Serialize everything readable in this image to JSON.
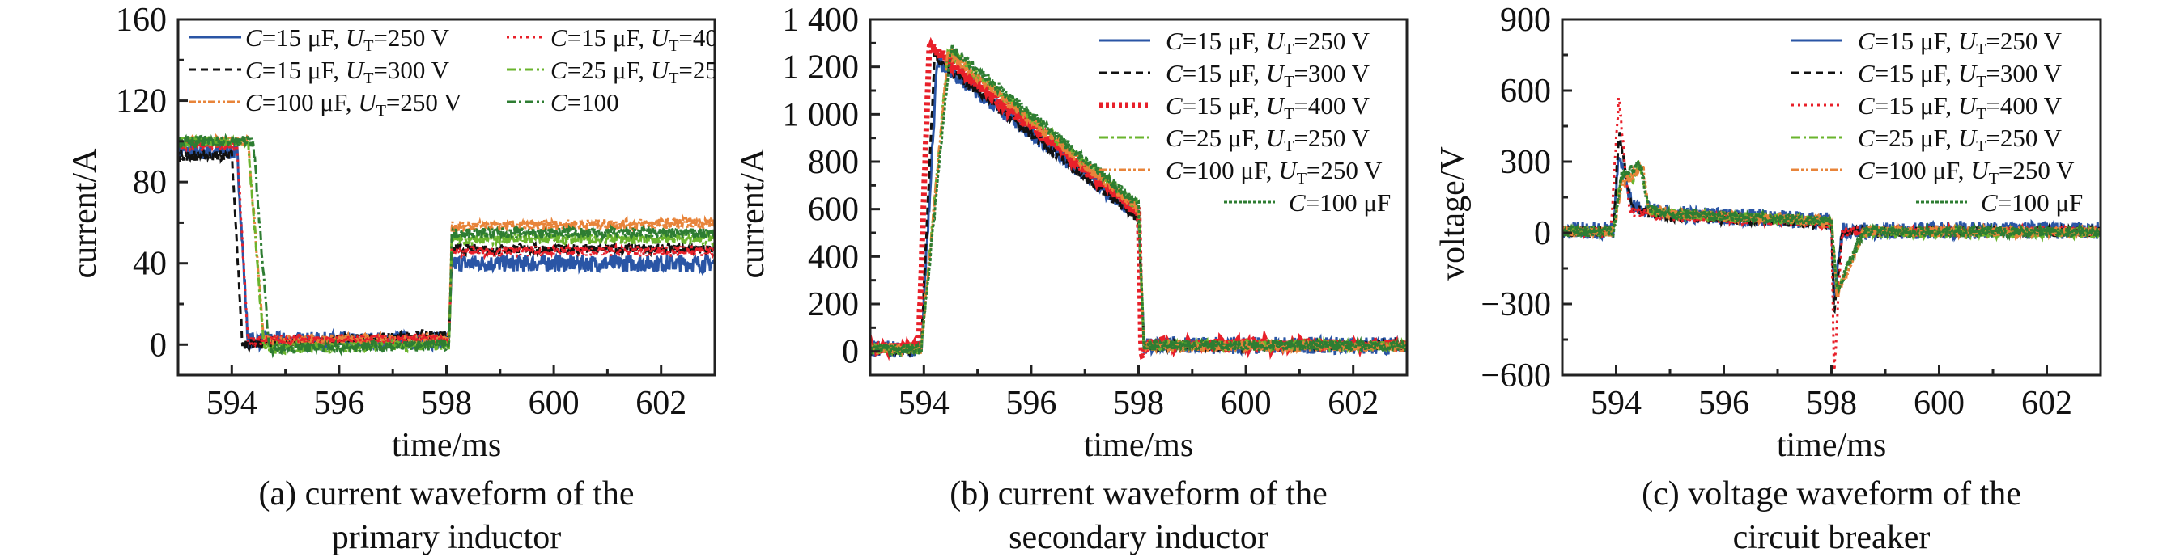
{
  "chart_data": [
    {
      "type": "line",
      "caption": [
        "(a) current waveform of the",
        "primary inductor"
      ],
      "xlabel": "time/ms",
      "ylabel": "current/A",
      "xlim": [
        593,
        603
      ],
      "ylim": [
        -15,
        160
      ],
      "x_ticks": [
        594,
        596,
        598,
        600,
        602
      ],
      "x_tick_labels": [
        "594",
        "596",
        "598",
        "600",
        "602"
      ],
      "y_ticks": [
        0,
        40,
        80,
        120,
        160
      ],
      "y_tick_labels": [
        "0",
        "40",
        "80",
        "120",
        "160"
      ],
      "grid": false,
      "legend_placement": "top-left, two columns",
      "series": [
        {
          "name": [
            "C",
            "=15 μF, ",
            "U",
            "T",
            "=250 V"
          ],
          "color": "#2a55a5",
          "style": "solid",
          "points": [
            [
              593,
              95
            ],
            [
              594.1,
              95
            ],
            [
              594.3,
              2
            ],
            [
              598.05,
              2
            ],
            [
              598.1,
              40
            ],
            [
              603,
              40
            ]
          ]
        },
        {
          "name": [
            "C",
            "=15 μF, ",
            "U",
            "T",
            "=300 V"
          ],
          "color": "#111111",
          "style": "dashed",
          "points": [
            [
              593,
              93
            ],
            [
              594.0,
              93
            ],
            [
              594.2,
              0
            ],
            [
              598.05,
              5
            ],
            [
              598.1,
              47
            ],
            [
              603,
              47
            ]
          ]
        },
        {
          "name": [
            "C",
            "=100 μF, ",
            "U",
            "T",
            "=250 V"
          ],
          "color": "#e8843a",
          "style": "dash-dot-dot",
          "points": [
            [
              593,
              100
            ],
            [
              594.3,
              100
            ],
            [
              594.6,
              2
            ],
            [
              598.05,
              3
            ],
            [
              598.1,
              58
            ],
            [
              603,
              60
            ]
          ]
        },
        {
          "name": [
            "C",
            "=15 μF, ",
            "U",
            "T",
            "=40"
          ],
          "color": "#e8202a",
          "style": "dotted",
          "points": [
            [
              593,
              98
            ],
            [
              594.1,
              98
            ],
            [
              594.3,
              2
            ],
            [
              598.05,
              3
            ],
            [
              598.1,
              46
            ],
            [
              603,
              46
            ]
          ]
        },
        {
          "name": [
            "C",
            "=25 μF, ",
            "U",
            "T",
            "=25"
          ],
          "color": "#6ab42d",
          "style": "dash-dot",
          "points": [
            [
              593,
              100
            ],
            [
              594.3,
              100
            ],
            [
              594.6,
              -2
            ],
            [
              598.05,
              0
            ],
            [
              598.1,
              52
            ],
            [
              603,
              52
            ]
          ]
        },
        {
          "name": [
            "C",
            "=100",
            "",
            "",
            ""
          ],
          "color": "#2e7d32",
          "style": "dash-dot",
          "points": [
            [
              593,
              100
            ],
            [
              594.4,
              100
            ],
            [
              594.7,
              -2
            ],
            [
              598.05,
              0
            ],
            [
              598.1,
              55
            ],
            [
              603,
              55
            ]
          ]
        }
      ]
    },
    {
      "type": "line",
      "caption": [
        "(b) current waveform of the",
        "secondary inductor"
      ],
      "xlabel": "time/ms",
      "ylabel": "current/A",
      "xlim": [
        593,
        603
      ],
      "ylim": [
        -100,
        1400
      ],
      "x_ticks": [
        594,
        596,
        598,
        600,
        602
      ],
      "x_tick_labels": [
        "594",
        "596",
        "598",
        "600",
        "602"
      ],
      "y_ticks": [
        0,
        200,
        400,
        600,
        800,
        1000,
        1200,
        1400
      ],
      "y_tick_labels": [
        "0",
        "200",
        "400",
        "600",
        "800",
        "1 000",
        "1 200",
        "1 400"
      ],
      "grid": false,
      "legend_placement": "top-right",
      "series": [
        {
          "name": [
            "C",
            "=15 μF, ",
            "U",
            "T",
            "=250 V"
          ],
          "color": "#2a55a5",
          "style": "solid",
          "points": [
            [
              593,
              10
            ],
            [
              593.95,
              10
            ],
            [
              594.25,
              1230
            ],
            [
              598.0,
              570
            ],
            [
              598.1,
              25
            ],
            [
              603,
              25
            ]
          ]
        },
        {
          "name": [
            "C",
            "=15 μF, ",
            "U",
            "T",
            "=300 V"
          ],
          "color": "#111111",
          "style": "dashed",
          "points": [
            [
              593,
              10
            ],
            [
              593.95,
              10
            ],
            [
              594.2,
              1240
            ],
            [
              598.0,
              560
            ],
            [
              598.1,
              25
            ],
            [
              603,
              25
            ]
          ]
        },
        {
          "name": [
            "C",
            "=15 μF, ",
            "U",
            "T",
            "=400 V"
          ],
          "color": "#e8202a",
          "style": "thick-dotted",
          "points": [
            [
              593,
              15
            ],
            [
              593.9,
              15
            ],
            [
              594.1,
              1290
            ],
            [
              598.0,
              590
            ],
            [
              598.05,
              -20
            ],
            [
              598.15,
              30
            ],
            [
              603,
              30
            ]
          ]
        },
        {
          "name": [
            "C",
            "=25 μF, ",
            "U",
            "T",
            "=250 V"
          ],
          "color": "#6ab42d",
          "style": "dash-dot",
          "points": [
            [
              593,
              10
            ],
            [
              593.95,
              10
            ],
            [
              594.45,
              1270
            ],
            [
              598.0,
              610
            ],
            [
              598.1,
              25
            ],
            [
              603,
              25
            ]
          ]
        },
        {
          "name": [
            "C",
            "=100 μF, ",
            "U",
            "T",
            "=250 V"
          ],
          "color": "#e8843a",
          "style": "dash-dot-dot",
          "points": [
            [
              593,
              10
            ],
            [
              593.95,
              10
            ],
            [
              594.45,
              1260
            ],
            [
              598.0,
              600
            ],
            [
              598.1,
              20
            ],
            [
              603,
              20
            ]
          ]
        },
        {
          "name": [
            "C",
            "=100 μF",
            "",
            "",
            ""
          ],
          "color": "#2e7d32",
          "style": "short-dash",
          "points": [
            [
              593,
              10
            ],
            [
              593.95,
              10
            ],
            [
              594.5,
              1280
            ],
            [
              598.0,
              620
            ],
            [
              598.1,
              25
            ],
            [
              603,
              25
            ]
          ]
        }
      ]
    },
    {
      "type": "line",
      "caption": [
        "(c) voltage waveform of the",
        "circuit breaker"
      ],
      "xlabel": "time/ms",
      "ylabel": "voltage/V",
      "xlim": [
        593,
        603
      ],
      "ylim": [
        -600,
        900
      ],
      "x_ticks": [
        594,
        596,
        598,
        600,
        602
      ],
      "x_tick_labels": [
        "594",
        "596",
        "598",
        "600",
        "602"
      ],
      "y_ticks": [
        -600,
        -300,
        0,
        300,
        600,
        900
      ],
      "y_tick_labels": [
        "−600",
        "−300",
        "0",
        "300",
        "600",
        "900"
      ],
      "grid": false,
      "legend_placement": "top-right",
      "series": [
        {
          "name": [
            "C",
            "=15 μF, ",
            "U",
            "T",
            "=250 V"
          ],
          "color": "#2a55a5",
          "style": "solid",
          "points": [
            [
              593,
              10
            ],
            [
              593.95,
              10
            ],
            [
              594.05,
              330
            ],
            [
              594.3,
              120
            ],
            [
              595,
              80
            ],
            [
              598.0,
              50
            ],
            [
              598.05,
              -300
            ],
            [
              598.2,
              10
            ],
            [
              603,
              10
            ]
          ]
        },
        {
          "name": [
            "C",
            "=15 μF, ",
            "U",
            "T",
            "=300 V"
          ],
          "color": "#111111",
          "style": "dashed",
          "points": [
            [
              593,
              5
            ],
            [
              593.95,
              5
            ],
            [
              594.05,
              430
            ],
            [
              594.3,
              100
            ],
            [
              595,
              70
            ],
            [
              598.0,
              40
            ],
            [
              598.05,
              -350
            ],
            [
              598.2,
              5
            ],
            [
              603,
              5
            ]
          ]
        },
        {
          "name": [
            "C",
            "=15 μF, ",
            "U",
            "T",
            "=400 V"
          ],
          "color": "#e8202a",
          "style": "dotted",
          "points": [
            [
              593,
              5
            ],
            [
              593.9,
              5
            ],
            [
              594.05,
              570
            ],
            [
              594.25,
              90
            ],
            [
              595,
              70
            ],
            [
              598.0,
              40
            ],
            [
              598.05,
              -600
            ],
            [
              598.2,
              5
            ],
            [
              603,
              5
            ]
          ]
        },
        {
          "name": [
            "C",
            "=25 μF, ",
            "U",
            "T",
            "=250 V"
          ],
          "color": "#6ab42d",
          "style": "dash-dot",
          "points": [
            [
              593,
              5
            ],
            [
              593.95,
              5
            ],
            [
              594.1,
              250
            ],
            [
              594.3,
              230
            ],
            [
              594.45,
              290
            ],
            [
              594.6,
              100
            ],
            [
              595,
              80
            ],
            [
              598.0,
              50
            ],
            [
              598.1,
              -250
            ],
            [
              598.6,
              0
            ],
            [
              603,
              0
            ]
          ]
        },
        {
          "name": [
            "C",
            "=100 μF, ",
            "U",
            "T",
            "=250 V"
          ],
          "color": "#e8843a",
          "style": "dash-dot-dot",
          "points": [
            [
              593,
              5
            ],
            [
              593.95,
              5
            ],
            [
              594.1,
              200
            ],
            [
              594.5,
              280
            ],
            [
              594.6,
              100
            ],
            [
              595,
              80
            ],
            [
              598.0,
              50
            ],
            [
              598.1,
              -260
            ],
            [
              598.6,
              5
            ],
            [
              603,
              5
            ]
          ]
        },
        {
          "name": [
            "C",
            "=100 μF",
            "",
            "",
            ""
          ],
          "color": "#2e7d32",
          "style": "short-dash",
          "points": [
            [
              593,
              5
            ],
            [
              593.95,
              5
            ],
            [
              594.1,
              240
            ],
            [
              594.45,
              290
            ],
            [
              594.6,
              100
            ],
            [
              595,
              80
            ],
            [
              598.0,
              50
            ],
            [
              598.1,
              -240
            ],
            [
              598.6,
              5
            ],
            [
              603,
              5
            ]
          ]
        }
      ]
    }
  ]
}
